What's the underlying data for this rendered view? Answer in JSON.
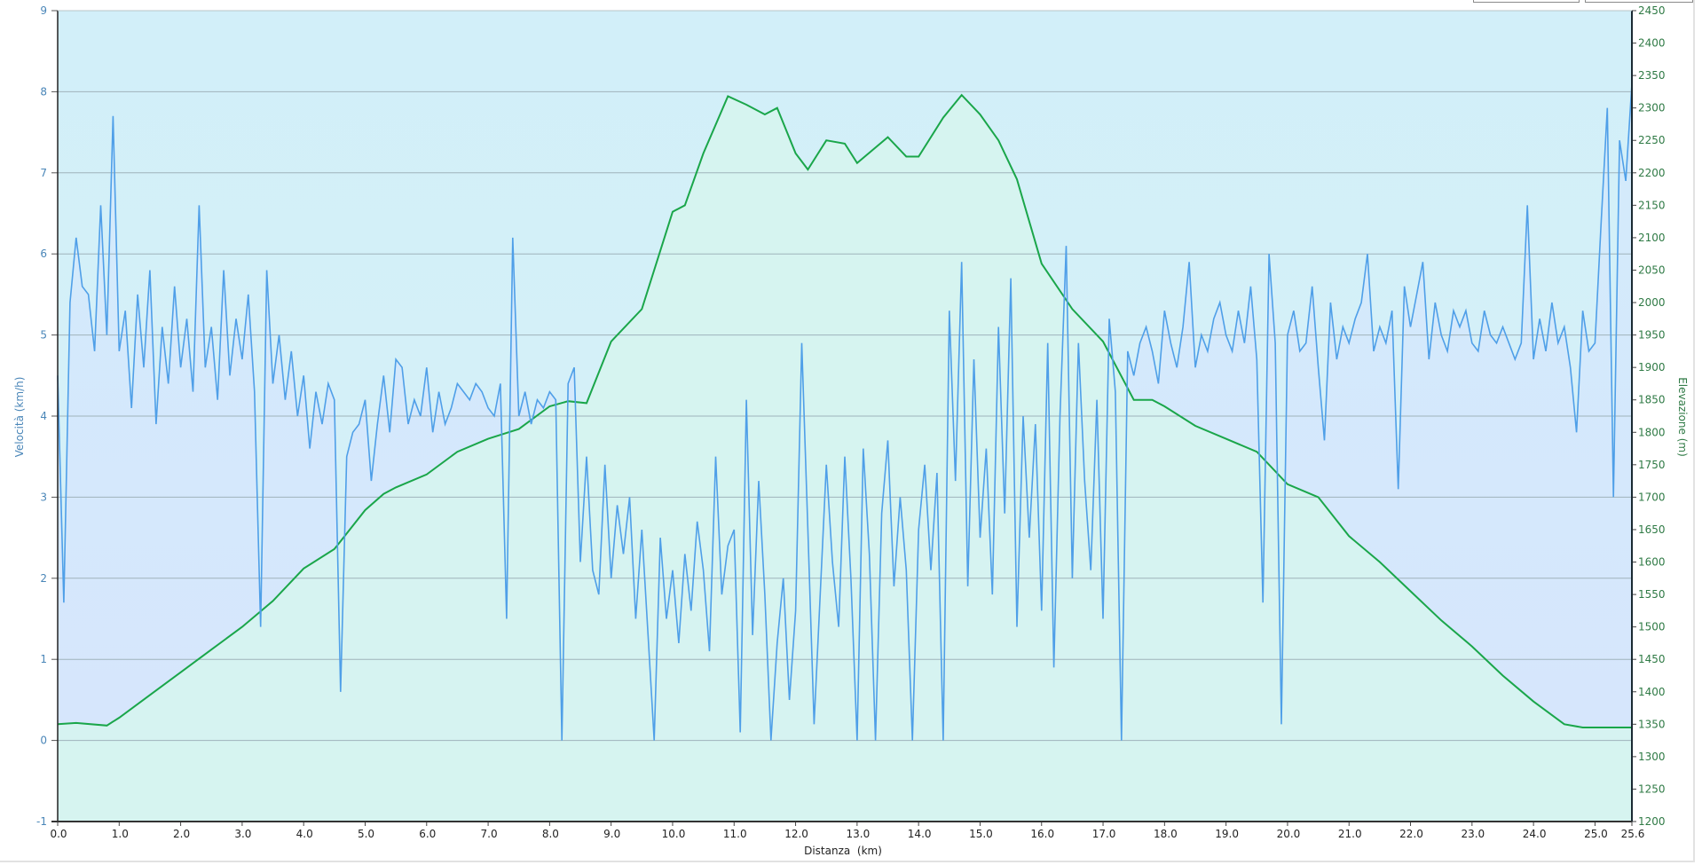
{
  "controls": {
    "button_1": "",
    "button_2": ""
  },
  "chart_data": {
    "type": "line",
    "xlabel": "Distanza  (km)",
    "ylabel_left": "Velocità (km/h)",
    "ylabel_right": "Elevazione (m)",
    "xlim": [
      0,
      25.6
    ],
    "ylim_left": [
      -1,
      9
    ],
    "ylim_right": [
      1200,
      2450
    ],
    "x_ticks": [
      "0.0",
      "1.0",
      "2.0",
      "3.0",
      "4.0",
      "5.0",
      "6.0",
      "7.0",
      "8.0",
      "9.0",
      "10.0",
      "11.0",
      "12.0",
      "13.0",
      "14.0",
      "15.0",
      "16.0",
      "17.0",
      "18.0",
      "19.0",
      "20.0",
      "21.0",
      "22.0",
      "23.0",
      "24.0",
      "25.0",
      "25.6"
    ],
    "y_ticks_left": [
      "-1",
      "0",
      "1",
      "2",
      "3",
      "4",
      "5",
      "6",
      "7",
      "8",
      "9"
    ],
    "y_ticks_right": [
      "1200",
      "1250",
      "1300",
      "1350",
      "1400",
      "1450",
      "1500",
      "1550",
      "1600",
      "1650",
      "1700",
      "1750",
      "1800",
      "1850",
      "1900",
      "1950",
      "2000",
      "2050",
      "2100",
      "2150",
      "2200",
      "2250",
      "2300",
      "2350",
      "2400",
      "2450"
    ],
    "grid": true,
    "colors": {
      "speed": "#4f9fe8",
      "elevation": "#1aa64a",
      "left_axis_text": "#4a86b8",
      "right_axis_text": "#2f7a45"
    },
    "series": [
      {
        "name": "Velocità",
        "axis": "left",
        "x_start": 0,
        "x_step": 0.1,
        "values": [
          4.5,
          1.7,
          5.4,
          6.2,
          5.6,
          5.5,
          4.8,
          6.6,
          5.0,
          7.7,
          4.8,
          5.3,
          4.1,
          5.5,
          4.6,
          5.8,
          3.9,
          5.1,
          4.4,
          5.6,
          4.6,
          5.2,
          4.3,
          6.6,
          4.6,
          5.1,
          4.2,
          5.8,
          4.5,
          5.2,
          4.7,
          5.5,
          4.3,
          1.4,
          5.8,
          4.4,
          5.0,
          4.2,
          4.8,
          4.0,
          4.5,
          3.6,
          4.3,
          3.9,
          4.4,
          4.2,
          0.6,
          3.5,
          3.8,
          3.9,
          4.2,
          3.2,
          3.9,
          4.5,
          3.8,
          4.7,
          4.6,
          3.9,
          4.2,
          4.0,
          4.6,
          3.8,
          4.3,
          3.9,
          4.1,
          4.4,
          4.3,
          4.2,
          4.4,
          4.3,
          4.1,
          4.0,
          4.4,
          1.5,
          6.2,
          4.0,
          4.3,
          3.9,
          4.2,
          4.1,
          4.3,
          4.2,
          0.0,
          4.4,
          4.6,
          2.2,
          3.5,
          2.1,
          1.8,
          3.4,
          2.0,
          2.9,
          2.3,
          3.0,
          1.5,
          2.6,
          1.3,
          0.0,
          2.5,
          1.5,
          2.1,
          1.2,
          2.3,
          1.6,
          2.7,
          2.1,
          1.1,
          3.5,
          1.8,
          2.4,
          2.6,
          0.1,
          4.2,
          1.3,
          3.2,
          1.8,
          0.0,
          1.2,
          2.0,
          0.5,
          1.6,
          4.9,
          2.6,
          0.2,
          1.8,
          3.4,
          2.2,
          1.4,
          3.5,
          2.0,
          0.0,
          3.6,
          2.3,
          0.0,
          2.8,
          3.7,
          1.9,
          3.0,
          2.1,
          0.0,
          2.6,
          3.4,
          2.1,
          3.3,
          0.0,
          5.3,
          3.2,
          5.9,
          1.9,
          4.7,
          2.5,
          3.6,
          1.8,
          5.1,
          2.8,
          5.7,
          1.4,
          4.0,
          2.5,
          3.9,
          1.6,
          4.9,
          0.9,
          4.0,
          6.1,
          2.0,
          4.9,
          3.2,
          2.1,
          4.2,
          1.5,
          5.2,
          4.3,
          0.0,
          4.8,
          4.5,
          4.9,
          5.1,
          4.8,
          4.4,
          5.3,
          4.9,
          4.6,
          5.1,
          5.9,
          4.6,
          5.0,
          4.8,
          5.2,
          5.4,
          5.0,
          4.8,
          5.3,
          4.9,
          5.6,
          4.7,
          1.7,
          6.0,
          4.9,
          0.2,
          5.0,
          5.3,
          4.8,
          4.9,
          5.6,
          4.6,
          3.7,
          5.4,
          4.7,
          5.1,
          4.9,
          5.2,
          5.4,
          6.0,
          4.8,
          5.1,
          4.9,
          5.3,
          3.1,
          5.6,
          5.1,
          5.5,
          5.9,
          4.7,
          5.4,
          5.0,
          4.8,
          5.3,
          5.1,
          5.3,
          4.9,
          4.8,
          5.3,
          5.0,
          4.9,
          5.1,
          4.9,
          4.7,
          4.9,
          6.6,
          4.7,
          5.2,
          4.8,
          5.4,
          4.9,
          5.1,
          4.6,
          3.8,
          5.3,
          4.8,
          4.9,
          6.4,
          7.8,
          3.0,
          7.4,
          6.9,
          8.1
        ]
      },
      {
        "name": "Elevazione",
        "axis": "right",
        "x": [
          0,
          0.3,
          0.8,
          1.0,
          1.5,
          2.0,
          2.5,
          3.0,
          3.5,
          4.0,
          4.5,
          5.0,
          5.3,
          5.5,
          6.0,
          6.5,
          7.0,
          7.5,
          8.0,
          8.3,
          8.6,
          9.0,
          9.5,
          10.0,
          10.2,
          10.5,
          10.9,
          11.2,
          11.5,
          11.7,
          12.0,
          12.2,
          12.5,
          12.8,
          13.0,
          13.5,
          13.8,
          14.0,
          14.4,
          14.7,
          15.0,
          15.3,
          15.6,
          16.0,
          16.5,
          17.0,
          17.5,
          17.8,
          18.0,
          18.5,
          19.0,
          19.5,
          20.0,
          20.5,
          21.0,
          21.5,
          22.0,
          22.5,
          23.0,
          23.5,
          24.0,
          24.5,
          24.8,
          25.0,
          25.6
        ],
        "values": [
          1350,
          1352,
          1348,
          1360,
          1395,
          1430,
          1465,
          1500,
          1540,
          1590,
          1620,
          1680,
          1705,
          1715,
          1735,
          1770,
          1790,
          1805,
          1840,
          1848,
          1845,
          1940,
          1990,
          2140,
          2150,
          2230,
          2318,
          2305,
          2290,
          2300,
          2230,
          2205,
          2250,
          2245,
          2215,
          2255,
          2225,
          2225,
          2285,
          2320,
          2290,
          2250,
          2190,
          2060,
          1990,
          1940,
          1850,
          1850,
          1840,
          1810,
          1790,
          1770,
          1720,
          1700,
          1640,
          1600,
          1555,
          1510,
          1470,
          1425,
          1385,
          1350,
          1345,
          1345,
          1345
        ]
      }
    ]
  }
}
